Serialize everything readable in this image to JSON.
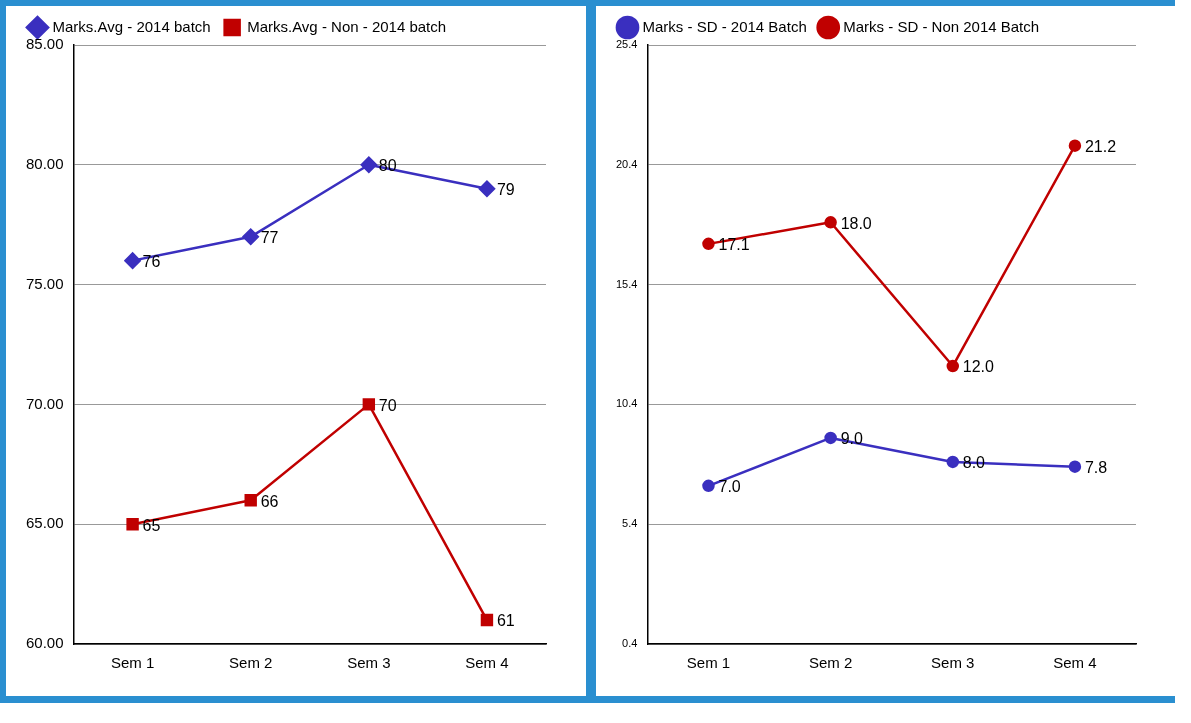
{
  "chart_data": [
    {
      "type": "line",
      "categories": [
        "Sem 1",
        "Sem 2",
        "Sem 3",
        "Sem 4"
      ],
      "series": [
        {
          "name": "Marks.Avg - 2014 batch",
          "color": "#3a2fbf",
          "values": [
            76,
            77,
            80,
            79
          ],
          "marker": "diamond"
        },
        {
          "name": "Marks.Avg - Non - 2014 batch",
          "color": "#c00000",
          "values": [
            65,
            66,
            70,
            61
          ],
          "marker": "square"
        }
      ],
      "ylim": [
        60,
        85
      ],
      "yticks": [
        {
          "value": 60,
          "label": "60.00"
        },
        {
          "value": 65,
          "label": "65.00"
        },
        {
          "value": 70,
          "label": "70.00"
        },
        {
          "value": 75,
          "label": "75.00"
        },
        {
          "value": 80,
          "label": "80.00"
        },
        {
          "value": 85,
          "label": "85.00"
        }
      ],
      "grid": "y",
      "legend": "top left",
      "data_labels": true
    },
    {
      "type": "line",
      "categories": [
        "Sem 1",
        "Sem 2",
        "Sem 3",
        "Sem 4"
      ],
      "series": [
        {
          "name": "Marks - SD - 2014 Batch",
          "color": "#3a2fbf",
          "values": [
            7,
            9,
            8,
            7.8
          ],
          "value_labels": [
            "7.0",
            "9.0",
            "8.0",
            "7.8"
          ],
          "marker": "circle"
        },
        {
          "name": "Marks - SD - Non 2014 Batch",
          "color": "#c00000",
          "values": [
            17.1,
            18,
            12,
            21.2
          ],
          "value_labels": [
            "17.1",
            "18.0",
            "12.0",
            "21.2"
          ],
          "marker": "circle"
        }
      ],
      "ylim": [
        0.4,
        25.4
      ],
      "yticks": [
        0.4,
        5.4,
        10.4,
        15.4,
        20.4,
        25.4
      ],
      "grid": "y",
      "legend": "top left"
    }
  ]
}
